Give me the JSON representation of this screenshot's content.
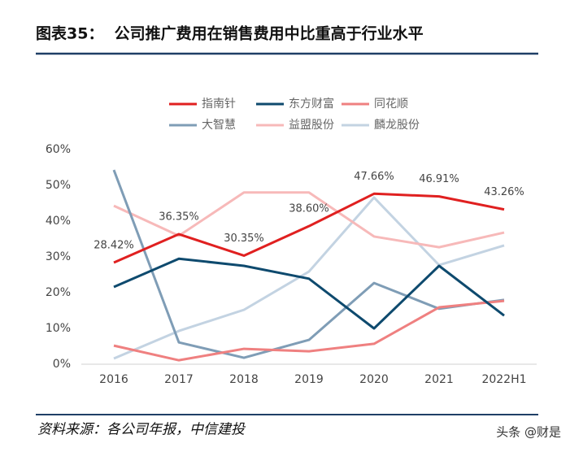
{
  "chart_data": {
    "type": "line",
    "title": "图表35：  公司推广费用在销售费用中比重高于行业水平",
    "categories": [
      "2016",
      "2017",
      "2018",
      "2019",
      "2020",
      "2021",
      "2022H1"
    ],
    "series": [
      {
        "name": "指南针",
        "color": "#e02020",
        "values": [
          28.42,
          36.35,
          30.35,
          38.6,
          47.66,
          46.91,
          43.26
        ],
        "value_labels": [
          "28.42%",
          "36.35%",
          "30.35%",
          "38.60%",
          "47.66%",
          "46.91%",
          "43.26%"
        ]
      },
      {
        "name": "东方财富",
        "color": "#0e4a6e",
        "values": [
          21.6,
          29.5,
          27.5,
          23.9,
          10.0,
          27.5,
          13.6
        ]
      },
      {
        "name": "同花顺",
        "color": "#ef8080",
        "values": [
          5.2,
          1.1,
          4.3,
          3.6,
          5.7,
          15.9,
          17.7
        ]
      },
      {
        "name": "大智慧",
        "color": "#7f9db6",
        "values": [
          54.3,
          6.1,
          1.8,
          6.8,
          22.7,
          15.5,
          18.0
        ]
      },
      {
        "name": "益盟股份",
        "color": "#f7b9b9",
        "values": [
          44.3,
          35.9,
          48.0,
          48.0,
          35.7,
          32.7,
          36.8
        ]
      },
      {
        "name": "麟龙股份",
        "color": "#c3d3e2",
        "values": [
          1.6,
          9.3,
          15.2,
          25.9,
          46.6,
          27.7,
          33.2
        ]
      }
    ],
    "ylim": [
      0,
      60
    ],
    "yticks": [
      {
        "value": 0,
        "label": "0%"
      },
      {
        "value": 10,
        "label": "10%"
      },
      {
        "value": 20,
        "label": "20%"
      },
      {
        "value": 30,
        "label": "30%"
      },
      {
        "value": 40,
        "label": "40%"
      },
      {
        "value": 50,
        "label": "50%"
      },
      {
        "value": 60,
        "label": "60%"
      }
    ],
    "grid": false
  },
  "footer": {
    "source": "资料来源：各公司年报，中信建投",
    "watermark": "头条 @财是"
  }
}
